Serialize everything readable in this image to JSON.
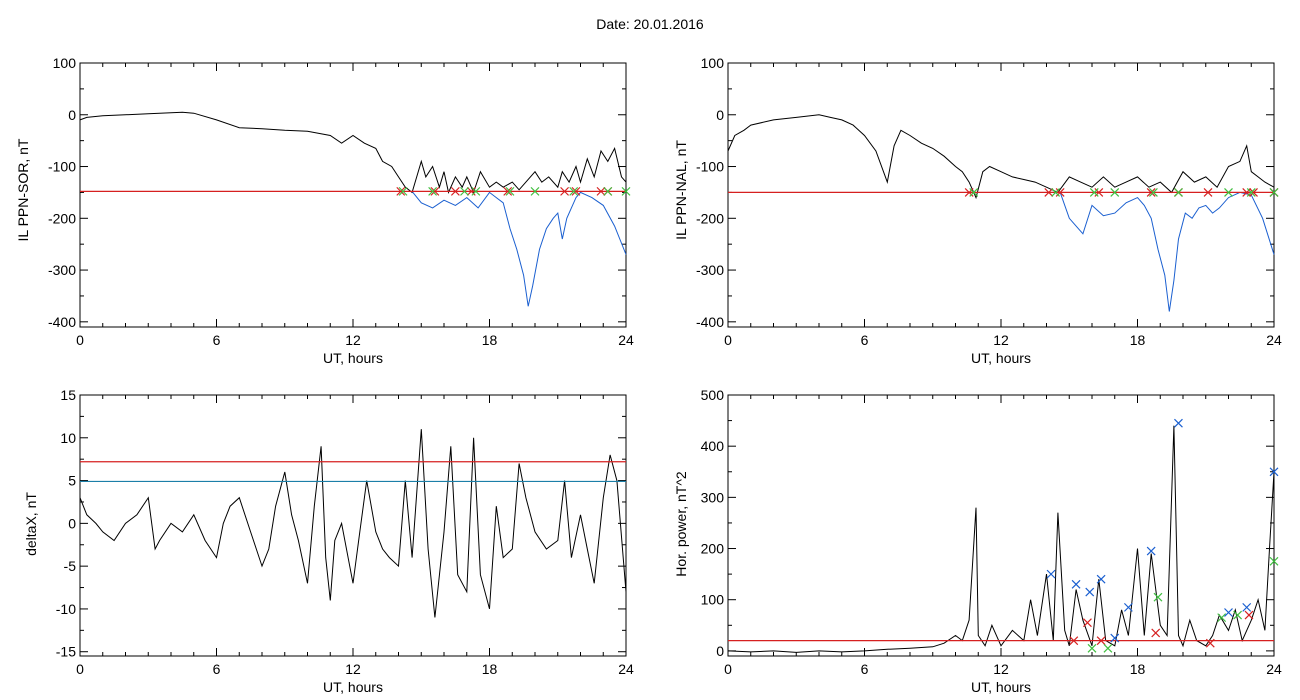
{
  "page": {
    "title": "Date:  20.01.2016"
  },
  "chart_data": [
    {
      "id": "p1",
      "type": "line",
      "ylabel": "IL PPN-SOR, nT",
      "xlabel": "UT, hours",
      "xlim": [
        0,
        24
      ],
      "ylim": [
        -410,
        100
      ],
      "xticks": [
        0,
        6,
        12,
        18,
        24
      ],
      "yticks": [
        100,
        0,
        -100,
        -200,
        -300,
        -400
      ],
      "threshold": -148,
      "series": [
        {
          "color": "#000000",
          "x": [
            0,
            0.3,
            1,
            2,
            3,
            4,
            4.5,
            5,
            6,
            7,
            8,
            9,
            10,
            11,
            11.5,
            12,
            12.5,
            13,
            13.3,
            13.7,
            14,
            14.3,
            14.6,
            15,
            15.2,
            15.5,
            15.8,
            16,
            16.2,
            16.5,
            16.8,
            17,
            17.3,
            17.6,
            18,
            18.3,
            18.6,
            19,
            19.3,
            19.6,
            20,
            20.3,
            20.6,
            21,
            21.2,
            21.5,
            21.8,
            22,
            22.3,
            22.6,
            22.9,
            23.2,
            23.5,
            23.8,
            24
          ],
          "y": [
            -10,
            -5,
            -2,
            0,
            2,
            4,
            5,
            3,
            -10,
            -25,
            -27,
            -30,
            -32,
            -40,
            -55,
            -40,
            -55,
            -65,
            -90,
            -100,
            -120,
            -140,
            -150,
            -90,
            -120,
            -100,
            -140,
            -110,
            -150,
            -120,
            -140,
            -120,
            -150,
            -110,
            -140,
            -130,
            -140,
            -130,
            -145,
            -130,
            -110,
            -130,
            -120,
            -140,
            -110,
            -130,
            -100,
            -130,
            -85,
            -120,
            -70,
            -90,
            -65,
            -120,
            -130
          ]
        },
        {
          "color": "#1a5fd0",
          "x": [
            14.6,
            15,
            15.5,
            16,
            16.5,
            17,
            17.5,
            18,
            18.3,
            18.6,
            18.9,
            19.2,
            19.5,
            19.7,
            19.9,
            20.2,
            20.5,
            20.8,
            21,
            21.2,
            21.4,
            21.6,
            21.8,
            22,
            22.5,
            23,
            23.5,
            24
          ],
          "y": [
            -148,
            -170,
            -180,
            -165,
            -175,
            -160,
            -180,
            -150,
            -160,
            -170,
            -220,
            -260,
            -310,
            -370,
            -330,
            -260,
            -220,
            -200,
            -190,
            -240,
            -200,
            -180,
            -160,
            -150,
            -160,
            -175,
            -215,
            -270
          ]
        }
      ],
      "red_marks": [
        14.1,
        15.6,
        16.5,
        17.2,
        18.8,
        21.3,
        21.8,
        22.9,
        23.2
      ],
      "green_marks": [
        14.2,
        15.5,
        16.9,
        17.4,
        18.9,
        20,
        21.7,
        23.2,
        24
      ]
    },
    {
      "id": "p2",
      "type": "line",
      "ylabel": "IL PPN-NAL, nT",
      "xlabel": "UT, hours",
      "xlim": [
        0,
        24
      ],
      "ylim": [
        -410,
        100
      ],
      "xticks": [
        0,
        6,
        12,
        18,
        24
      ],
      "yticks": [
        100,
        0,
        -100,
        -200,
        -300,
        -400
      ],
      "threshold": -150,
      "series": [
        {
          "color": "#000000",
          "x": [
            0,
            0.3,
            0.7,
            1,
            2,
            3,
            4,
            4.5,
            5,
            5.5,
            6,
            6.5,
            7,
            7.3,
            7.6,
            8,
            8.5,
            9,
            9.5,
            10,
            10.3,
            10.6,
            10.9,
            11.2,
            11.5,
            12,
            12.5,
            13,
            13.5,
            14,
            14.5,
            15,
            15.5,
            16,
            16.5,
            17,
            17.5,
            18,
            18.5,
            19,
            19.5,
            20,
            20.5,
            21,
            21.5,
            22,
            22.5,
            22.8,
            23,
            23.3,
            23.6,
            24
          ],
          "y": [
            -70,
            -40,
            -30,
            -20,
            -10,
            -5,
            0,
            -5,
            -10,
            -20,
            -40,
            -70,
            -130,
            -60,
            -30,
            -40,
            -55,
            -65,
            -80,
            -100,
            -110,
            -130,
            -160,
            -110,
            -100,
            -110,
            -120,
            -125,
            -130,
            -140,
            -150,
            -120,
            -130,
            -140,
            -120,
            -140,
            -130,
            -120,
            -140,
            -130,
            -150,
            -110,
            -130,
            -120,
            -140,
            -100,
            -90,
            -60,
            -110,
            -120,
            -130,
            -140
          ]
        },
        {
          "color": "#1a5fd0",
          "x": [
            14.6,
            15,
            15.3,
            15.6,
            16,
            16.5,
            17,
            17.5,
            18,
            18.3,
            18.6,
            18.9,
            19.2,
            19.4,
            19.6,
            19.8,
            20.1,
            20.4,
            20.7,
            21,
            21.3,
            21.6,
            22,
            22.5,
            23,
            23.5,
            24
          ],
          "y": [
            -150,
            -200,
            -215,
            -230,
            -175,
            -195,
            -190,
            -170,
            -160,
            -175,
            -200,
            -260,
            -310,
            -380,
            -320,
            -240,
            -190,
            -200,
            -180,
            -175,
            -190,
            -180,
            -160,
            -150,
            -155,
            -200,
            -270
          ]
        }
      ],
      "red_marks": [
        10.6,
        14.1,
        14.6,
        16.3,
        18.6,
        19.8,
        21.1,
        22.8,
        23.1,
        24
      ],
      "green_marks": [
        10.8,
        14.4,
        16.1,
        17,
        18.7,
        19.8,
        22,
        23,
        24
      ]
    },
    {
      "id": "p3",
      "type": "line",
      "ylabel": "deltaX, nT",
      "xlabel": "UT, hours",
      "xlim": [
        0,
        24
      ],
      "ylim": [
        -15.5,
        15
      ],
      "xticks": [
        0,
        6,
        12,
        18,
        24
      ],
      "yticks": [
        15,
        10,
        5,
        0,
        -5,
        -10,
        -15
      ],
      "thresholds": [
        {
          "value": 7.2,
          "color": "#d62020"
        },
        {
          "value": 4.9,
          "color": "#1c7fa8"
        }
      ],
      "series": [
        {
          "color": "#000000",
          "x": [
            0,
            0.3,
            0.7,
            1,
            1.5,
            2,
            2.5,
            3,
            3.3,
            3.5,
            4,
            4.5,
            5,
            5.5,
            6,
            6.3,
            6.6,
            7,
            7.5,
            8,
            8.3,
            8.6,
            9,
            9.3,
            9.6,
            10,
            10.3,
            10.6,
            10.8,
            11,
            11.2,
            11.5,
            12,
            12.3,
            12.6,
            13,
            13.3,
            13.6,
            14,
            14.3,
            14.6,
            15,
            15.3,
            15.6,
            16,
            16.3,
            16.6,
            17,
            17.3,
            17.6,
            18,
            18.3,
            18.6,
            19,
            19.3,
            19.6,
            20,
            20.5,
            21,
            21.3,
            21.6,
            22,
            22.3,
            22.6,
            23,
            23.3,
            23.6,
            24
          ],
          "y": [
            3,
            1,
            0,
            -1,
            -2,
            0,
            1,
            3,
            -3,
            -2,
            0,
            -1,
            1,
            -2,
            -4,
            0,
            2,
            3,
            -1,
            -5,
            -3,
            2,
            6,
            1,
            -2,
            -7,
            2,
            9,
            -4,
            -9,
            -2,
            0,
            -7,
            -1,
            5,
            -1,
            -3,
            -4,
            -5,
            5,
            -4,
            11,
            -3,
            -11,
            -1,
            9,
            -6,
            -8,
            10,
            -6,
            -10,
            2,
            -4,
            -3,
            7,
            3,
            -1,
            -3,
            -2,
            5,
            -4,
            1,
            -3,
            -7,
            3,
            8,
            5,
            -8
          ]
        }
      ]
    },
    {
      "id": "p4",
      "type": "line",
      "ylabel": "Hor. power, nT^2",
      "xlabel": "UT, hours",
      "xlim": [
        0,
        24
      ],
      "ylim": [
        -10,
        500
      ],
      "xticks": [
        0,
        6,
        12,
        18,
        24
      ],
      "yticks": [
        500,
        400,
        300,
        200,
        100,
        0
      ],
      "threshold": 20,
      "series": [
        {
          "color": "#000000",
          "x": [
            0,
            1,
            2,
            3,
            4,
            5,
            6,
            7,
            8,
            9,
            9.5,
            10,
            10.3,
            10.6,
            10.9,
            11,
            11.3,
            11.6,
            12,
            12.5,
            13,
            13.3,
            13.6,
            14,
            14.3,
            14.5,
            14.8,
            15,
            15.3,
            15.6,
            16,
            16.3,
            16.6,
            17,
            17.3,
            17.6,
            18,
            18.3,
            18.6,
            19,
            19.3,
            19.6,
            19.8,
            20,
            20.3,
            20.6,
            21,
            21.3,
            21.6,
            22,
            22.3,
            22.6,
            23,
            23.3,
            23.6,
            23.8,
            24
          ],
          "y": [
            0,
            -2,
            0,
            -3,
            0,
            -2,
            0,
            3,
            5,
            8,
            15,
            30,
            20,
            60,
            280,
            30,
            10,
            50,
            10,
            40,
            20,
            100,
            30,
            150,
            20,
            270,
            40,
            10,
            120,
            60,
            10,
            140,
            20,
            10,
            80,
            30,
            200,
            30,
            190,
            50,
            30,
            440,
            30,
            10,
            60,
            20,
            10,
            30,
            70,
            40,
            80,
            20,
            60,
            100,
            40,
            200,
            350
          ]
        }
      ],
      "blue_marks": [
        {
          "x": 14.2,
          "y": 150
        },
        {
          "x": 15.3,
          "y": 130
        },
        {
          "x": 15.9,
          "y": 115
        },
        {
          "x": 16.4,
          "y": 140
        },
        {
          "x": 17.0,
          "y": 25
        },
        {
          "x": 17.6,
          "y": 85
        },
        {
          "x": 18.6,
          "y": 195
        },
        {
          "x": 19.8,
          "y": 445
        },
        {
          "x": 22.0,
          "y": 75
        },
        {
          "x": 22.8,
          "y": 85
        },
        {
          "x": 24.0,
          "y": 350
        }
      ],
      "red_marks": [
        {
          "x": 15.2,
          "y": 20
        },
        {
          "x": 15.8,
          "y": 55
        },
        {
          "x": 16.4,
          "y": 20
        },
        {
          "x": 18.8,
          "y": 35
        },
        {
          "x": 21.2,
          "y": 15
        },
        {
          "x": 22.9,
          "y": 70
        }
      ],
      "green_marks": [
        {
          "x": 16.0,
          "y": 5
        },
        {
          "x": 16.7,
          "y": 5
        },
        {
          "x": 18.9,
          "y": 105
        },
        {
          "x": 21.7,
          "y": 65
        },
        {
          "x": 22.4,
          "y": 70
        },
        {
          "x": 24.0,
          "y": 175
        }
      ]
    }
  ]
}
